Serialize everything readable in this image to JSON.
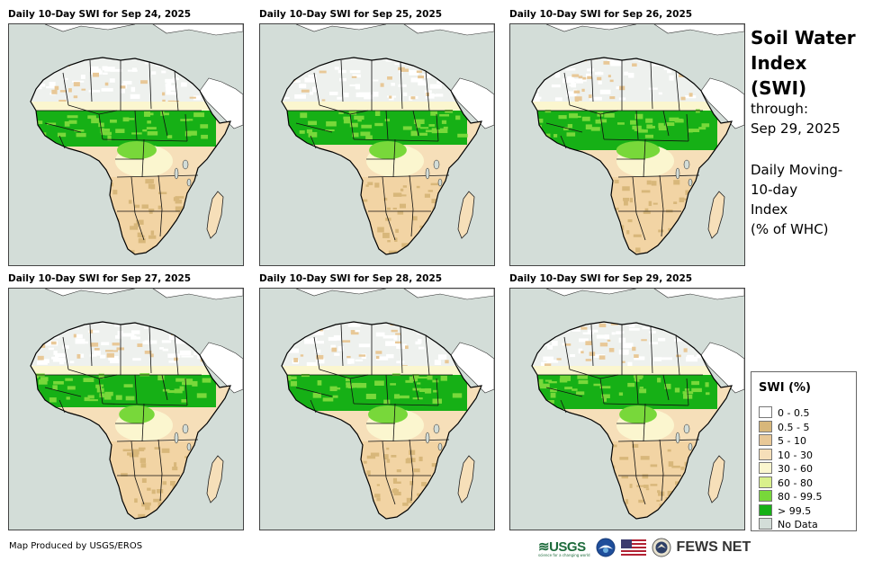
{
  "panels": [
    {
      "title": "Daily 10-Day SWI for Sep 24, 2025",
      "wet": 1.0
    },
    {
      "title": "Daily 10-Day SWI for Sep 25, 2025",
      "wet": 0.95
    },
    {
      "title": "Daily 10-Day SWI for Sep 26, 2025",
      "wet": 1.1
    },
    {
      "title": "Daily 10-Day SWI for Sep 27, 2025",
      "wet": 0.9
    },
    {
      "title": "Daily 10-Day SWI for Sep 28, 2025",
      "wet": 1.0
    },
    {
      "title": "Daily 10-Day SWI for Sep 29, 2025",
      "wet": 0.95
    }
  ],
  "side": {
    "title_line1": "Soil Water",
    "title_line2": "Index (SWI)",
    "through_label": "through:",
    "through_date": "Sep 29, 2025",
    "desc_line1": "Daily Moving-",
    "desc_line2": "10-day",
    "desc_line3": "Index",
    "desc_line4": "(% of WHC)"
  },
  "legend": {
    "title": "SWI (%)",
    "items": [
      {
        "label": "0 - 0.5",
        "color": "#ffffff"
      },
      {
        "label": "0.5 - 5",
        "color": "#d8b77a"
      },
      {
        "label": "5 - 10",
        "color": "#e8c897"
      },
      {
        "label": "10 - 30",
        "color": "#f6dfb9"
      },
      {
        "label": "30 - 60",
        "color": "#fbf6cf"
      },
      {
        "label": "60 - 80",
        "color": "#d9f08c"
      },
      {
        "label": "80 - 99.5",
        "color": "#78d83a"
      },
      {
        "label": "> 99.5",
        "color": "#16b016"
      },
      {
        "label": "No Data",
        "color": "#d3ddd8"
      }
    ]
  },
  "footer": {
    "credit": "Map Produced by USGS/EROS",
    "usgs_logo": "≋USGS",
    "usgs_tagline": "science for a changing world",
    "fews_logo": "FEWS NET"
  },
  "colors": {
    "ocean": "#d3ddd8",
    "land_dry": "#f6dfb9",
    "land_moist": "#fbf6cf",
    "wet": "#78d83a",
    "saturated": "#16b016",
    "nodata_desert": "#eef1ee"
  }
}
